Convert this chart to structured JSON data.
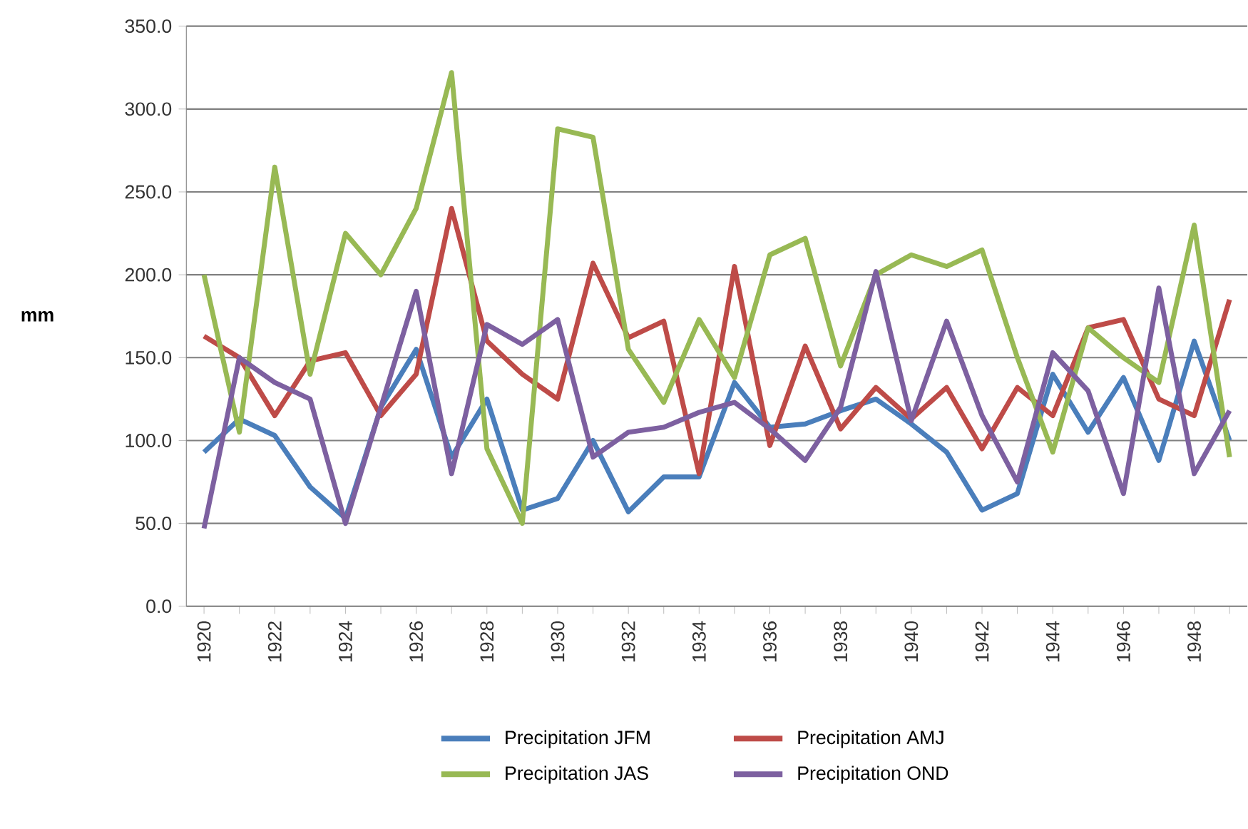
{
  "chart_data": {
    "type": "line",
    "ylabel": "mm",
    "categories": [
      "1920",
      null,
      "1922",
      null,
      "1924",
      null,
      "1926",
      null,
      "1928",
      null,
      "1930",
      null,
      "1932",
      null,
      "1934",
      null,
      "1936",
      null,
      "1938",
      null,
      "1940",
      null,
      "1942",
      null,
      "1944",
      null,
      "1946",
      null,
      "1948",
      null
    ],
    "series": [
      {
        "name": "Precipitation JFM",
        "color": "#4a7ebb",
        "values": [
          93,
          113,
          103,
          72,
          53,
          120,
          155,
          90,
          125,
          58,
          65,
          100,
          57,
          78,
          78,
          135,
          108,
          110,
          118,
          125,
          110,
          93,
          58,
          68,
          140,
          105,
          138,
          88,
          160,
          100
        ]
      },
      {
        "name": "Precipitation AMJ",
        "color": "#be4b48",
        "values": [
          163,
          150,
          115,
          148,
          153,
          115,
          140,
          240,
          160,
          140,
          125,
          207,
          162,
          172,
          80,
          205,
          97,
          157,
          107,
          132,
          113,
          132,
          95,
          132,
          115,
          168,
          173,
          125,
          115,
          185
        ]
      },
      {
        "name": "Precipitation JAS",
        "color": "#98b954",
        "values": [
          200,
          105,
          265,
          140,
          225,
          200,
          240,
          322,
          95,
          50,
          288,
          283,
          155,
          123,
          173,
          138,
          212,
          222,
          145,
          200,
          212,
          205,
          215,
          150,
          93,
          168,
          150,
          135,
          230,
          90
        ]
      },
      {
        "name": "Precipitation OND",
        "color": "#7d60a0",
        "values": [
          47,
          150,
          135,
          125,
          50,
          120,
          190,
          80,
          170,
          158,
          173,
          90,
          105,
          108,
          117,
          123,
          107,
          88,
          120,
          202,
          112,
          172,
          115,
          75,
          153,
          130,
          68,
          192,
          80,
          118
        ]
      }
    ],
    "ylim": [
      0,
      350
    ],
    "yticks": [
      {
        "value": 0,
        "label": "0.0"
      },
      {
        "value": 50,
        "label": "50.0"
      },
      {
        "value": 100,
        "label": "100.0"
      },
      {
        "value": 150,
        "label": "150.0"
      },
      {
        "value": 200,
        "label": "200.0"
      },
      {
        "value": 250,
        "label": "250.0"
      },
      {
        "value": 300,
        "label": "300.0"
      },
      {
        "value": 350,
        "label": "350.0"
      }
    ],
    "grid": "y",
    "legend": "bottom",
    "marker": "none",
    "line_style": "solid"
  }
}
